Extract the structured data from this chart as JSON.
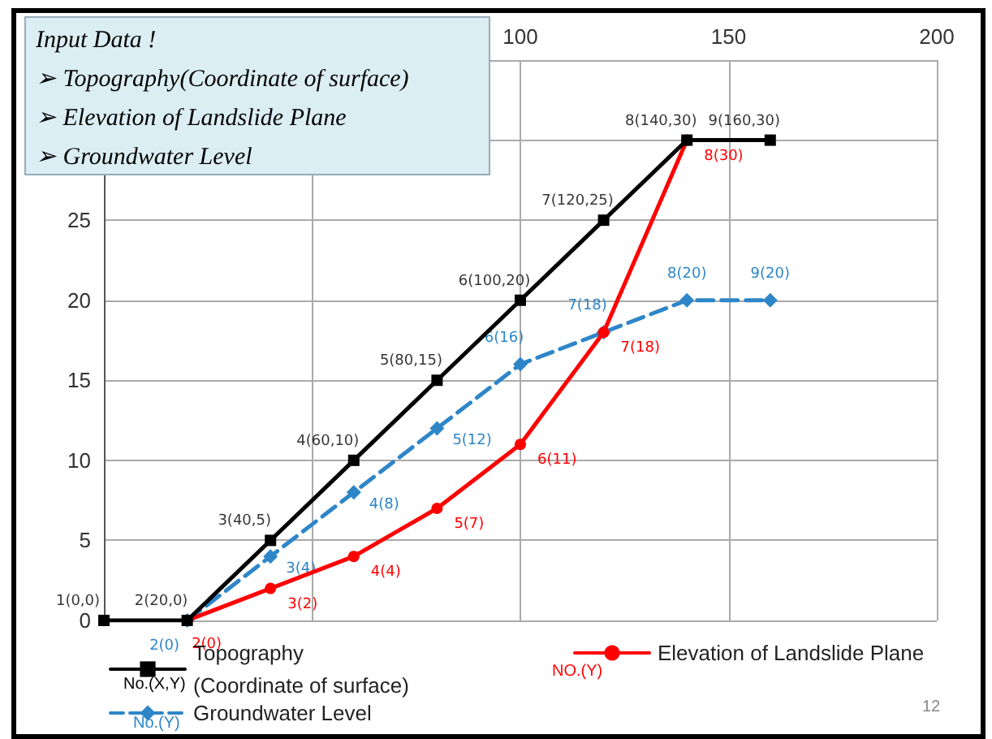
{
  "chart_data": {
    "type": "line",
    "xlim": [
      0,
      200
    ],
    "xticks": [
      {
        "value": 0,
        "label": null
      },
      {
        "value": 50,
        "label": null
      },
      100,
      150,
      200
    ],
    "ylim": [
      0,
      35
    ],
    "yticks": [
      0,
      5,
      10,
      15,
      20,
      25,
      {
        "value": 30,
        "label": null
      },
      {
        "value": 35,
        "label": null
      }
    ],
    "grid": true,
    "legend": "bottom",
    "series": [
      {
        "name": "Topography\n(Coordinate of surface)",
        "color": "#000000",
        "marker": "square",
        "line_style": "solid",
        "x": [
          0,
          20,
          40,
          60,
          80,
          100,
          120,
          140,
          160
        ],
        "values": [
          0,
          0,
          5,
          10,
          15,
          20,
          25,
          30,
          30
        ]
      },
      {
        "name": "Elevation of Landslide Plane",
        "color": "#ff0000",
        "marker": "circle",
        "line_style": "solid",
        "x": [
          20,
          40,
          60,
          80,
          100,
          120,
          140
        ],
        "values": [
          0,
          2,
          4,
          7,
          11,
          18,
          30
        ],
        "value_labels": [
          "2(0)",
          "3(2)",
          "4(4)",
          "5(7)",
          "6(11)",
          "7(18)",
          "8(30)"
        ]
      },
      {
        "name": "Groundwater Level",
        "color": "#2e86c8",
        "marker": "diamond",
        "line_style": "dashed",
        "x": [
          20,
          40,
          60,
          80,
          100,
          120,
          140,
          160
        ],
        "values": [
          0,
          4,
          8,
          12,
          16,
          18,
          20,
          20
        ],
        "value_labels": [
          "2(0)",
          "3(4)",
          "4(8)",
          "5(12)",
          "6(16)",
          "7(18)",
          "8(20)",
          "9(20)"
        ]
      }
    ],
    "annotations": [
      "Input Data !",
      "➢ Topography(Coordinate of surface)",
      "➢ Elevation of Landslide Plane",
      "➢ Groundwater Level",
      "No.(X,Y)",
      "NO.(Y)",
      "No.(Y)",
      "12",
      {
        "text": "1(0,0)",
        "x": 0,
        "y": 0
      },
      {
        "text": "2(20,0)",
        "x": 20,
        "y": 0
      },
      {
        "text": "3(40,5)",
        "x": 40,
        "y": 5
      },
      {
        "text": "4(60,10)",
        "x": 60,
        "y": 10
      },
      {
        "text": "5(80,15)",
        "x": 80,
        "y": 15
      },
      {
        "text": "6(100,20)",
        "x": 100,
        "y": 20
      },
      {
        "text": "7(120,25)",
        "x": 120,
        "y": 25
      },
      {
        "text": "8(140,30)",
        "x": 140,
        "y": 30
      },
      {
        "text": "9(160,30)",
        "x": 160,
        "y": 30
      }
    ]
  }
}
